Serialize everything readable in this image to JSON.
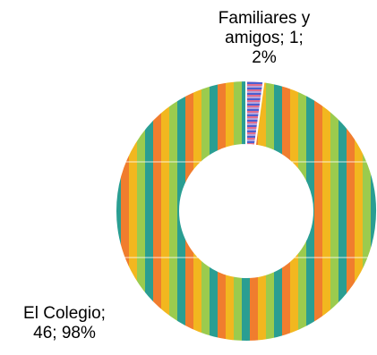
{
  "chart_data": {
    "type": "pie",
    "variant": "doughnut",
    "title": "",
    "categories": [
      "Familiares y amigos",
      "El Colegio"
    ],
    "values": [
      1,
      46
    ],
    "percentages": [
      2,
      98
    ],
    "data_labels": [
      {
        "category": "Familiares y amigos",
        "lines": [
          "Familiares y",
          "amigos; 1;",
          "2%"
        ]
      },
      {
        "category": "El Colegio",
        "lines": [
          "El Colegio;",
          "46; 98%"
        ]
      }
    ],
    "legend": "none",
    "fills": {
      "El Colegio": {
        "pattern": "vertical-stripes",
        "colors": [
          "#F2B71F",
          "#9BCB4E",
          "#2A9E92",
          "#F07D2E"
        ]
      },
      "Familiares y amigos": {
        "pattern": "horizontal-stripes",
        "colors": [
          "#B5A3DB",
          "#4A5FD1",
          "#E16D8E"
        ]
      }
    },
    "separator_color": "#ffffff"
  }
}
